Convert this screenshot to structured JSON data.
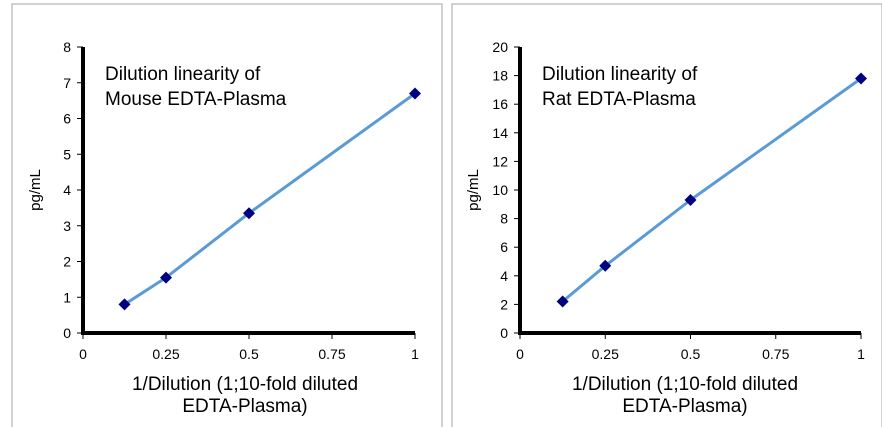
{
  "colors": {
    "line": "#5B9BD5",
    "marker": "#000080",
    "axis": "#000000",
    "panel_border": "#A6A6A6"
  },
  "chart_data": [
    {
      "type": "scatter",
      "annotation_lines": [
        "Dilution linearity of",
        "Mouse EDTA-Plasma"
      ],
      "xlabel_lines": [
        "1/Dilution (1;10-fold diluted",
        "EDTA-Plasma)"
      ],
      "ylabel": "pg/mL",
      "xlim": [
        0,
        1
      ],
      "ylim": [
        0,
        8
      ],
      "x_ticks": [
        0,
        0.25,
        0.5,
        0.75,
        1
      ],
      "y_ticks": [
        0,
        1,
        2,
        3,
        4,
        5,
        6,
        7,
        8
      ],
      "grid": false,
      "series": [
        {
          "x": [
            0.125,
            0.25,
            0.5,
            1
          ],
          "y": [
            0.8,
            1.55,
            3.35,
            6.7
          ]
        }
      ]
    },
    {
      "type": "scatter",
      "annotation_lines": [
        "Dilution linearity of",
        "Rat EDTA-Plasma"
      ],
      "xlabel_lines": [
        "1/Dilution (1;10-fold diluted",
        "EDTA-Plasma)"
      ],
      "ylabel": "pg/mL",
      "xlim": [
        0,
        1
      ],
      "ylim": [
        0,
        20
      ],
      "x_ticks": [
        0,
        0.25,
        0.5,
        0.75,
        1
      ],
      "y_ticks": [
        0,
        2,
        4,
        6,
        8,
        10,
        12,
        14,
        16,
        18,
        20
      ],
      "grid": false,
      "series": [
        {
          "x": [
            0.125,
            0.25,
            0.5,
            1
          ],
          "y": [
            2.2,
            4.7,
            9.3,
            17.8
          ]
        }
      ]
    }
  ]
}
